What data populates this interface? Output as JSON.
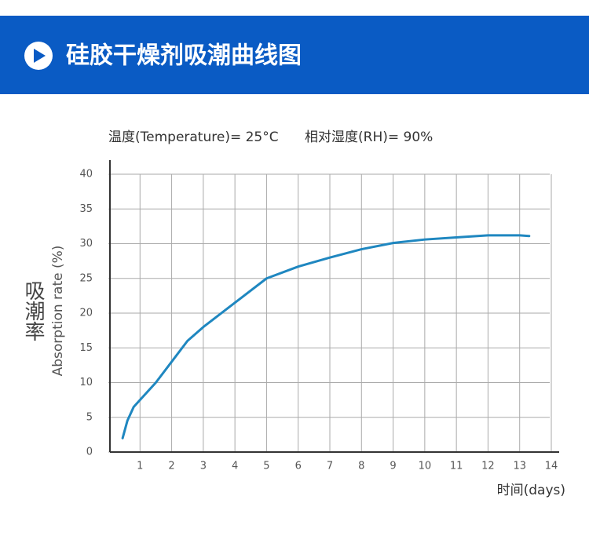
{
  "header": {
    "title": "硅胶干燥剂吸潮曲线图"
  },
  "chart_data": {
    "type": "line",
    "annotations": [
      "温度(Temperature)= 25°C",
      "相对湿度(RH)= 90%"
    ],
    "y_label_cn": "吸潮率",
    "y_label": "Absorption rate (%)",
    "x_label": "时间(days)",
    "x": [
      0.45,
      0.6,
      0.8,
      1,
      1.5,
      2,
      2.5,
      3,
      4,
      5,
      6,
      7,
      8,
      9,
      10,
      11,
      12,
      13,
      13.3
    ],
    "series": [
      {
        "color": "#1f87c0",
        "values": [
          2,
          4.5,
          6.5,
          7.5,
          10,
          13,
          16,
          18,
          21.5,
          25,
          26.7,
          28,
          29.2,
          30.1,
          30.6,
          30.9,
          31.2,
          31.2,
          31.1
        ]
      }
    ],
    "xlim": [
      0,
      14
    ],
    "xticks": [
      1,
      2,
      3,
      4,
      5,
      6,
      7,
      8,
      9,
      10,
      11,
      12,
      13,
      14
    ],
    "ylim": [
      0,
      40
    ],
    "yticks": [
      0,
      5,
      10,
      15,
      20,
      25,
      30,
      35,
      40
    ],
    "grid": true
  }
}
